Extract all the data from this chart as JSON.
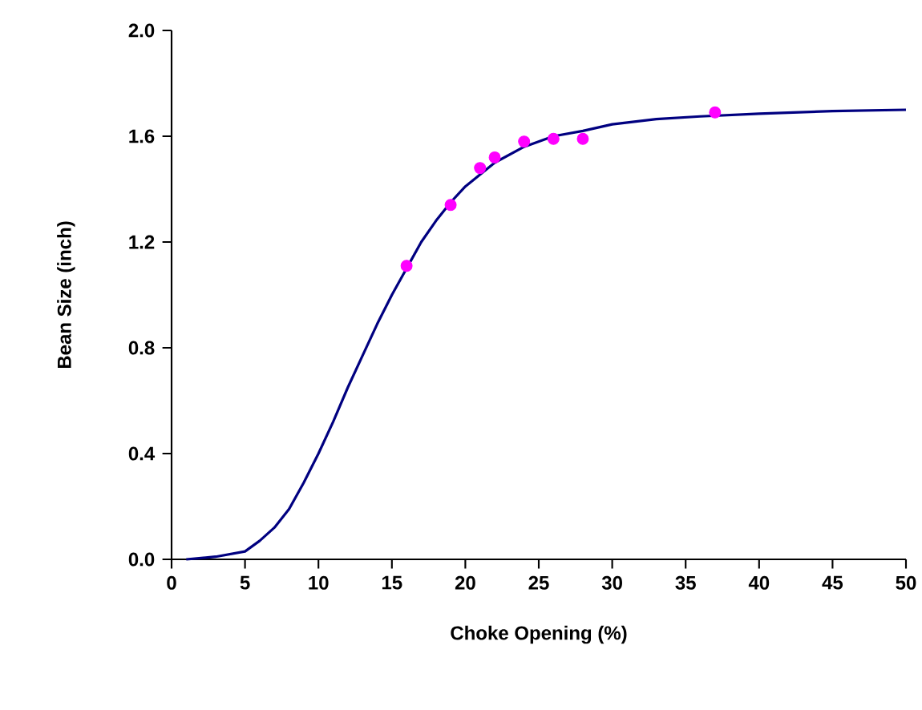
{
  "chart_data": {
    "type": "line",
    "xlabel": "Choke Opening (%)",
    "ylabel": "Bean Size (inch)",
    "xlim": [
      0,
      50
    ],
    "ylim": [
      0,
      2.0
    ],
    "xticks": [
      0,
      5,
      10,
      15,
      20,
      25,
      30,
      35,
      40,
      45,
      50
    ],
    "yticks": [
      {
        "value": 0,
        "label": "0.0"
      },
      {
        "value": 0.4,
        "label": "0.4"
      },
      {
        "value": 0.8,
        "label": "0.8"
      },
      {
        "value": 1.2,
        "label": "1.2"
      },
      {
        "value": 1.6,
        "label": "1.6"
      },
      {
        "value": 2.0,
        "label": "2.0"
      }
    ],
    "grid": false,
    "series": [
      {
        "color": "#000080",
        "marker": "none",
        "x": [
          1,
          3,
          5,
          6,
          7,
          8,
          9,
          10,
          11,
          12,
          13,
          14,
          15,
          16,
          17,
          18,
          19,
          20,
          22,
          24,
          26,
          28,
          30,
          33,
          36,
          40,
          45,
          50
        ],
        "values": [
          0,
          0.01,
          0.03,
          0.07,
          0.12,
          0.19,
          0.29,
          0.4,
          0.52,
          0.65,
          0.77,
          0.89,
          1.0,
          1.1,
          1.2,
          1.28,
          1.35,
          1.41,
          1.5,
          1.56,
          1.6,
          1.62,
          1.645,
          1.665,
          1.675,
          1.685,
          1.695,
          1.7
        ]
      },
      {
        "type": "scatter",
        "color": "#ff00ff",
        "marker": "circle",
        "x": [
          16,
          19,
          21,
          22,
          24,
          26,
          28,
          37
        ],
        "values": [
          1.11,
          1.34,
          1.48,
          1.52,
          1.58,
          1.59,
          1.59,
          1.69
        ]
      }
    ]
  }
}
